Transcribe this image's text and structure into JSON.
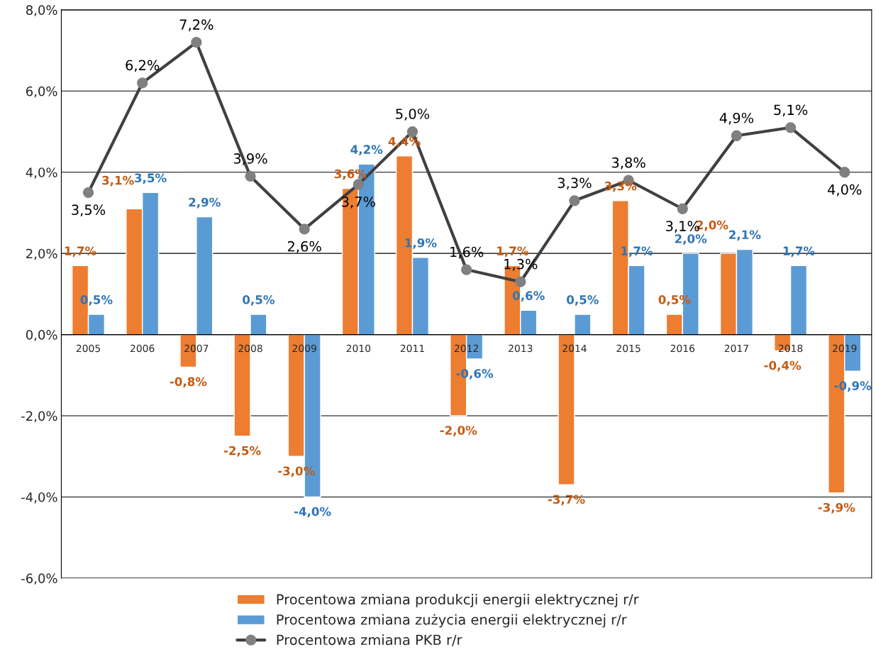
{
  "chart_data": {
    "type": "bar",
    "categories": [
      "2005",
      "2006",
      "2007",
      "2008",
      "2009",
      "2010",
      "2011",
      "2012",
      "2013",
      "2014",
      "2015",
      "2016",
      "2017",
      "2018",
      "2019"
    ],
    "series": [
      {
        "name": "Procentowa zmiana produkcji energii elektrycznej r/r",
        "color": "#ed7d31",
        "values": [
          1.7,
          3.1,
          -0.8,
          -2.5,
          -3.0,
          3.6,
          4.4,
          -2.0,
          1.7,
          -3.7,
          3.3,
          0.5,
          2.0,
          -0.4,
          -3.9
        ],
        "value_labels": [
          "1,7%",
          "3,1%",
          "-0,8%",
          "-2,5%",
          "-3,0%",
          "3,6%",
          "4,4%",
          "-2,0%",
          "1,7%",
          "-3,7%",
          "3,3%",
          "0,5%",
          "2,0%",
          "-0,4%",
          "-3,9%"
        ]
      },
      {
        "name": "Procentowa zmiana zużycia energii elektrycznej r/r",
        "color": "#5b9bd5",
        "values": [
          0.5,
          3.5,
          2.9,
          0.5,
          -4.0,
          4.2,
          1.9,
          -0.6,
          0.6,
          0.5,
          1.7,
          2.0,
          2.1,
          1.7,
          -0.9
        ],
        "value_labels": [
          "0,5%",
          "3,5%",
          "2,9%",
          "0,5%",
          "-4,0%",
          "4,2%",
          "1,9%",
          "-0,6%",
          "0,6%",
          "0,5%",
          "1,7%",
          "2,0%",
          "2,1%",
          "1,7%",
          "-0,9%"
        ]
      },
      {
        "name": "Procentowa zmiana PKB r/r",
        "type": "line",
        "color": "#404040",
        "marker": "circle",
        "line_style": "solid",
        "values": [
          3.5,
          6.2,
          7.2,
          3.9,
          2.6,
          3.7,
          5.0,
          1.6,
          1.3,
          3.3,
          3.8,
          3.1,
          4.9,
          5.1,
          4.0
        ],
        "value_labels": [
          "3,5%",
          "6,2%",
          "7,2%",
          "3,9%",
          "2,6%",
          "3,7%",
          "5,0%",
          "1,6%",
          "1,3%",
          "3,3%",
          "3,8%",
          "3,1%",
          "4,9%",
          "5,1%",
          "4,0%"
        ]
      }
    ],
    "ylim": [
      -6,
      8
    ],
    "yticks": [
      {
        "value": -6,
        "label": "-6,0%"
      },
      {
        "value": -4,
        "label": "-4,0%"
      },
      {
        "value": -2,
        "label": "-2,0%"
      },
      {
        "value": 0,
        "label": "0,0%"
      },
      {
        "value": 2,
        "label": "2,0%"
      },
      {
        "value": 4,
        "label": "4,0%"
      },
      {
        "value": 6,
        "label": "6,0%"
      },
      {
        "value": 8,
        "label": "8,0%"
      }
    ],
    "grid": "y",
    "legend": "bottom"
  }
}
